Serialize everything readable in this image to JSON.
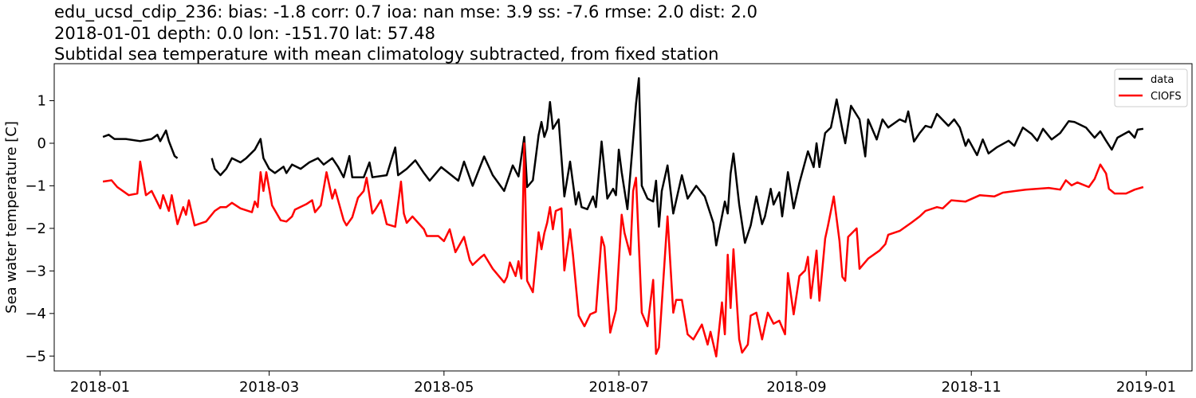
{
  "title_lines": [
    "edu_ucsd_cdip_236: bias: -1.8  corr: 0.7  ioa: nan  mse: 3.9  ss: -7.6  rmse: 2.0  dist: 2.0",
    "2018-01-01 depth: 0.0 lon: -151.70 lat: 57.48",
    "Subtidal sea temperature with mean climatology subtracted, from fixed station"
  ],
  "chart_data": {
    "type": "line",
    "xlabel": "",
    "ylabel": "Sea water temperature [C]",
    "xlim": [
      "2017-12-16",
      "2019-01-17"
    ],
    "ylim": [
      -5.35,
      1.87
    ],
    "x_ticks": [
      "2018-01",
      "2018-03",
      "2018-05",
      "2018-07",
      "2018-09",
      "2018-11",
      "2019-01"
    ],
    "y_ticks": [
      1,
      0,
      -1,
      -2,
      -3,
      -4,
      -5
    ],
    "y_tick_labels": [
      "1",
      "0",
      "−1",
      "−2",
      "−3",
      "−4",
      "−5"
    ],
    "grid": false,
    "legend_position": "top-right",
    "series": [
      {
        "name": "data",
        "color": "#000000",
        "x": [
          "2018-01-02",
          "2018-01-04",
          "2018-01-06",
          "2018-01-10",
          "2018-01-15",
          "2018-01-19",
          "2018-01-21",
          "2018-01-22",
          "2018-01-24",
          "2018-01-25",
          "2018-01-27",
          "2018-01-28",
          "2018-02-01",
          "2018-02-09",
          "2018-02-10",
          "2018-02-12",
          "2018-02-14",
          "2018-02-16",
          "2018-02-19",
          "2018-02-21",
          "2018-02-24",
          "2018-02-26",
          "2018-02-27",
          "2018-03-01",
          "2018-03-03",
          "2018-03-06",
          "2018-03-07",
          "2018-03-09",
          "2018-03-12",
          "2018-03-15",
          "2018-03-18",
          "2018-03-20",
          "2018-03-23",
          "2018-03-25",
          "2018-03-27",
          "2018-03-29",
          "2018-03-30",
          "2018-04-03",
          "2018-04-05",
          "2018-04-06",
          "2018-04-11",
          "2018-04-14",
          "2018-04-15",
          "2018-04-18",
          "2018-04-21",
          "2018-04-24",
          "2018-04-26",
          "2018-04-30",
          "2018-05-06",
          "2018-05-08",
          "2018-05-11",
          "2018-05-15",
          "2018-05-18",
          "2018-05-22",
          "2018-05-25",
          "2018-05-27",
          "2018-05-29",
          "2018-05-30",
          "2018-06-01",
          "2018-06-03",
          "2018-06-04",
          "2018-06-05",
          "2018-06-06",
          "2018-06-07",
          "2018-06-08",
          "2018-06-10",
          "2018-06-12",
          "2018-06-14",
          "2018-06-16",
          "2018-06-17",
          "2018-06-18",
          "2018-06-20",
          "2018-06-22",
          "2018-06-23",
          "2018-06-25",
          "2018-06-27",
          "2018-06-29",
          "2018-06-30",
          "2018-07-01",
          "2018-07-02",
          "2018-07-04",
          "2018-07-07",
          "2018-07-08",
          "2018-07-09",
          "2018-07-11",
          "2018-07-13",
          "2018-07-14",
          "2018-07-15",
          "2018-07-16",
          "2018-07-18",
          "2018-07-20",
          "2018-07-23",
          "2018-07-25",
          "2018-07-28",
          "2018-07-31",
          "2018-08-03",
          "2018-08-04",
          "2018-08-07",
          "2018-08-08",
          "2018-08-09",
          "2018-08-10",
          "2018-08-12",
          "2018-08-14",
          "2018-08-16",
          "2018-08-18",
          "2018-08-20",
          "2018-08-21",
          "2018-08-23",
          "2018-08-24",
          "2018-08-26",
          "2018-08-27",
          "2018-08-29",
          "2018-08-31",
          "2018-09-02",
          "2018-09-05",
          "2018-09-07",
          "2018-09-08",
          "2018-09-09",
          "2018-09-11",
          "2018-09-13",
          "2018-09-15",
          "2018-09-17",
          "2018-09-18",
          "2018-09-20",
          "2018-09-23",
          "2018-09-25",
          "2018-09-26",
          "2018-09-29",
          "2018-10-01",
          "2018-10-03",
          "2018-10-07",
          "2018-10-09",
          "2018-10-10",
          "2018-10-12",
          "2018-10-14",
          "2018-10-16",
          "2018-10-18",
          "2018-10-20",
          "2018-10-24",
          "2018-10-26",
          "2018-10-28",
          "2018-10-30",
          "2018-10-31",
          "2018-11-03",
          "2018-11-05",
          "2018-11-07",
          "2018-11-10",
          "2018-11-14",
          "2018-11-16",
          "2018-11-19",
          "2018-11-22",
          "2018-11-24",
          "2018-11-26",
          "2018-11-29",
          "2018-12-02",
          "2018-12-05",
          "2018-12-07",
          "2018-12-11",
          "2018-12-14",
          "2018-12-16",
          "2018-12-18",
          "2018-12-20",
          "2018-12-22",
          "2018-12-26",
          "2018-12-28",
          "2018-12-29",
          "2018-12-31"
        ],
        "y": [
          0.15,
          0.2,
          0.1,
          0.1,
          0.05,
          0.1,
          0.2,
          0.05,
          0.3,
          0.05,
          -0.3,
          -0.35,
          null,
          -0.35,
          -0.6,
          -0.75,
          -0.6,
          -0.35,
          -0.45,
          -0.35,
          -0.15,
          0.1,
          -0.35,
          -0.6,
          -0.7,
          -0.55,
          -0.7,
          -0.5,
          -0.6,
          -0.45,
          -0.35,
          -0.5,
          -0.35,
          -0.55,
          -0.8,
          -0.3,
          -0.8,
          -0.8,
          -0.45,
          -0.8,
          -0.75,
          -0.1,
          -0.75,
          -0.6,
          -0.4,
          -0.7,
          -0.88,
          -0.56,
          -0.88,
          -0.43,
          -1.0,
          -0.31,
          -0.75,
          -1.12,
          -0.52,
          -0.78,
          0.15,
          -1.03,
          -0.87,
          0.19,
          0.5,
          0.15,
          0.34,
          0.97,
          0.34,
          0.56,
          -1.25,
          -0.43,
          -1.44,
          -1.15,
          -1.5,
          -1.55,
          -1.25,
          -1.5,
          0.04,
          -1.3,
          -1.07,
          -1.22,
          -0.15,
          -0.68,
          -1.55,
          0.93,
          1.53,
          -1.0,
          -1.3,
          -1.37,
          -0.88,
          -1.96,
          -1.12,
          -0.52,
          -1.65,
          -0.75,
          -1.3,
          -1.0,
          -1.25,
          -1.87,
          -2.4,
          -1.37,
          -1.65,
          -0.71,
          -0.24,
          -1.44,
          -2.34,
          -1.93,
          -1.25,
          -1.9,
          -1.72,
          -1.07,
          -1.44,
          -1.15,
          -1.72,
          -0.68,
          -1.53,
          -0.93,
          -0.19,
          -0.56,
          0.0,
          -0.56,
          0.24,
          0.37,
          1.03,
          0.32,
          0.0,
          0.88,
          0.56,
          -0.31,
          0.56,
          0.09,
          0.56,
          0.37,
          0.56,
          0.5,
          0.75,
          0.04,
          0.24,
          0.41,
          0.37,
          0.69,
          0.41,
          0.56,
          0.37,
          -0.06,
          0.09,
          -0.28,
          0.09,
          -0.24,
          -0.09,
          0.06,
          -0.06,
          0.37,
          0.22,
          0.06,
          0.34,
          0.09,
          0.24,
          0.52,
          0.5,
          0.37,
          0.13,
          0.28,
          0.06,
          -0.15,
          0.13,
          0.28,
          0.13,
          0.32,
          0.34
        ]
      },
      {
        "name": "CIOFS",
        "color": "#ff0000",
        "x": [
          "2018-01-02",
          "2018-01-05",
          "2018-01-07",
          "2018-01-11",
          "2018-01-14",
          "2018-01-15",
          "2018-01-17",
          "2018-01-19",
          "2018-01-22",
          "2018-01-23",
          "2018-01-25",
          "2018-01-26",
          "2018-01-28",
          "2018-01-30",
          "2018-01-31",
          "2018-02-01",
          "2018-02-03",
          "2018-02-07",
          "2018-02-10",
          "2018-02-12",
          "2018-02-14",
          "2018-02-16",
          "2018-02-19",
          "2018-02-23",
          "2018-02-24",
          "2018-02-25",
          "2018-02-26",
          "2018-02-27",
          "2018-02-28",
          "2018-03-02",
          "2018-03-05",
          "2018-03-07",
          "2018-03-09",
          "2018-03-10",
          "2018-03-14",
          "2018-03-16",
          "2018-03-17",
          "2018-03-19",
          "2018-03-21",
          "2018-03-23",
          "2018-03-24",
          "2018-03-27",
          "2018-03-28",
          "2018-03-30",
          "2018-04-01",
          "2018-04-03",
          "2018-04-04",
          "2018-04-06",
          "2018-04-07",
          "2018-04-09",
          "2018-04-11",
          "2018-04-14",
          "2018-04-16",
          "2018-04-17",
          "2018-04-18",
          "2018-04-20",
          "2018-04-22",
          "2018-04-24",
          "2018-04-25",
          "2018-04-29",
          "2018-05-01",
          "2018-05-03",
          "2018-05-05",
          "2018-05-08",
          "2018-05-10",
          "2018-05-11",
          "2018-05-14",
          "2018-05-15",
          "2018-05-18",
          "2018-05-22",
          "2018-05-23",
          "2018-05-24",
          "2018-05-26",
          "2018-05-27",
          "2018-05-28",
          "2018-05-29",
          "2018-05-30",
          "2018-06-01",
          "2018-06-03",
          "2018-06-04",
          "2018-06-05",
          "2018-06-06",
          "2018-06-07",
          "2018-06-08",
          "2018-06-09",
          "2018-06-11",
          "2018-06-12",
          "2018-06-14",
          "2018-06-15",
          "2018-06-17",
          "2018-06-19",
          "2018-06-21",
          "2018-06-23",
          "2018-06-25",
          "2018-06-26",
          "2018-06-28",
          "2018-06-30",
          "2018-07-02",
          "2018-07-03",
          "2018-07-05",
          "2018-07-06",
          "2018-07-07",
          "2018-07-09",
          "2018-07-11",
          "2018-07-13",
          "2018-07-14",
          "2018-07-15",
          "2018-07-18",
          "2018-07-20",
          "2018-07-21",
          "2018-07-23",
          "2018-07-25",
          "2018-07-27",
          "2018-07-30",
          "2018-08-01",
          "2018-08-02",
          "2018-08-04",
          "2018-08-06",
          "2018-08-07",
          "2018-08-08",
          "2018-08-09",
          "2018-08-10",
          "2018-08-12",
          "2018-08-13",
          "2018-08-15",
          "2018-08-16",
          "2018-08-18",
          "2018-08-20",
          "2018-08-22",
          "2018-08-24",
          "2018-08-26",
          "2018-08-28",
          "2018-08-29",
          "2018-08-31",
          "2018-09-02",
          "2018-09-04",
          "2018-09-05",
          "2018-09-06",
          "2018-09-08",
          "2018-09-09",
          "2018-09-11",
          "2018-09-12",
          "2018-09-14",
          "2018-09-16",
          "2018-09-17",
          "2018-09-18",
          "2018-09-19",
          "2018-09-22",
          "2018-09-23",
          "2018-09-26",
          "2018-09-30",
          "2018-10-02",
          "2018-10-03",
          "2018-10-07",
          "2018-10-11",
          "2018-10-14",
          "2018-10-16",
          "2018-10-20",
          "2018-10-22",
          "2018-10-25",
          "2018-10-30",
          "2018-11-04",
          "2018-11-09",
          "2018-11-12",
          "2018-11-20",
          "2018-11-28",
          "2018-12-02",
          "2018-12-04",
          "2018-12-06",
          "2018-12-08",
          "2018-12-12",
          "2018-12-14",
          "2018-12-16",
          "2018-12-18",
          "2018-12-19",
          "2018-12-21",
          "2018-12-25",
          "2018-12-28",
          "2018-12-31"
        ],
        "y": [
          -0.9,
          -0.87,
          -1.03,
          -1.22,
          -1.18,
          -0.43,
          -1.22,
          -1.12,
          -1.53,
          -1.22,
          -1.59,
          -1.22,
          -1.9,
          -1.5,
          -1.68,
          -1.34,
          -1.93,
          -1.84,
          -1.59,
          -1.5,
          -1.5,
          -1.4,
          -1.53,
          -1.62,
          -1.37,
          -1.5,
          -0.68,
          -1.12,
          -0.68,
          -1.46,
          -1.81,
          -1.84,
          -1.72,
          -1.56,
          -1.43,
          -1.34,
          -1.62,
          -1.46,
          -0.68,
          -1.3,
          -1.09,
          -1.81,
          -1.93,
          -1.74,
          -1.28,
          -1.12,
          -0.81,
          -1.65,
          -1.56,
          -1.34,
          -1.9,
          -1.96,
          -0.9,
          -1.65,
          -1.87,
          -1.72,
          -1.87,
          -2.02,
          -2.18,
          -2.18,
          -2.3,
          -2.02,
          -2.56,
          -2.2,
          -2.75,
          -2.86,
          -2.67,
          -2.62,
          -2.95,
          -3.27,
          -3.14,
          -2.8,
          -3.12,
          -2.77,
          -3.18,
          0.0,
          -3.23,
          -3.5,
          -2.09,
          -2.49,
          -2.11,
          -1.87,
          -1.5,
          -2.02,
          -1.59,
          -1.53,
          -2.99,
          -2.02,
          -2.62,
          -4.05,
          -4.3,
          -4.02,
          -3.96,
          -2.2,
          -2.43,
          -4.45,
          -3.92,
          -1.68,
          -2.11,
          -2.62,
          -1.12,
          -0.81,
          -3.98,
          -4.3,
          -3.21,
          -4.95,
          -4.8,
          -1.72,
          -3.98,
          -3.68,
          -3.68,
          -4.49,
          -4.61,
          -4.26,
          -4.73,
          -4.43,
          -5.01,
          -3.74,
          -4.49,
          -2.62,
          -3.87,
          -2.49,
          -4.61,
          -4.92,
          -4.73,
          -4.05,
          -3.98,
          -4.61,
          -3.98,
          -4.24,
          -4.17,
          -4.49,
          -3.05,
          -4.02,
          -3.12,
          -2.99,
          -2.67,
          -3.64,
          -2.52,
          -3.7,
          -2.24,
          -1.93,
          -1.25,
          -2.3,
          -3.14,
          -3.23,
          -2.2,
          -2.0,
          -2.95,
          -2.71,
          -2.52,
          -2.37,
          -2.15,
          -2.06,
          -1.87,
          -1.72,
          -1.59,
          -1.5,
          -1.53,
          -1.34,
          -1.37,
          -1.22,
          -1.25,
          -1.16,
          -1.09,
          -1.05,
          -1.09,
          -0.87,
          -0.99,
          -0.92,
          -1.03,
          -0.84,
          -0.5,
          -0.71,
          -1.07,
          -1.18,
          -1.18,
          -1.09,
          -1.03
        ]
      }
    ]
  }
}
